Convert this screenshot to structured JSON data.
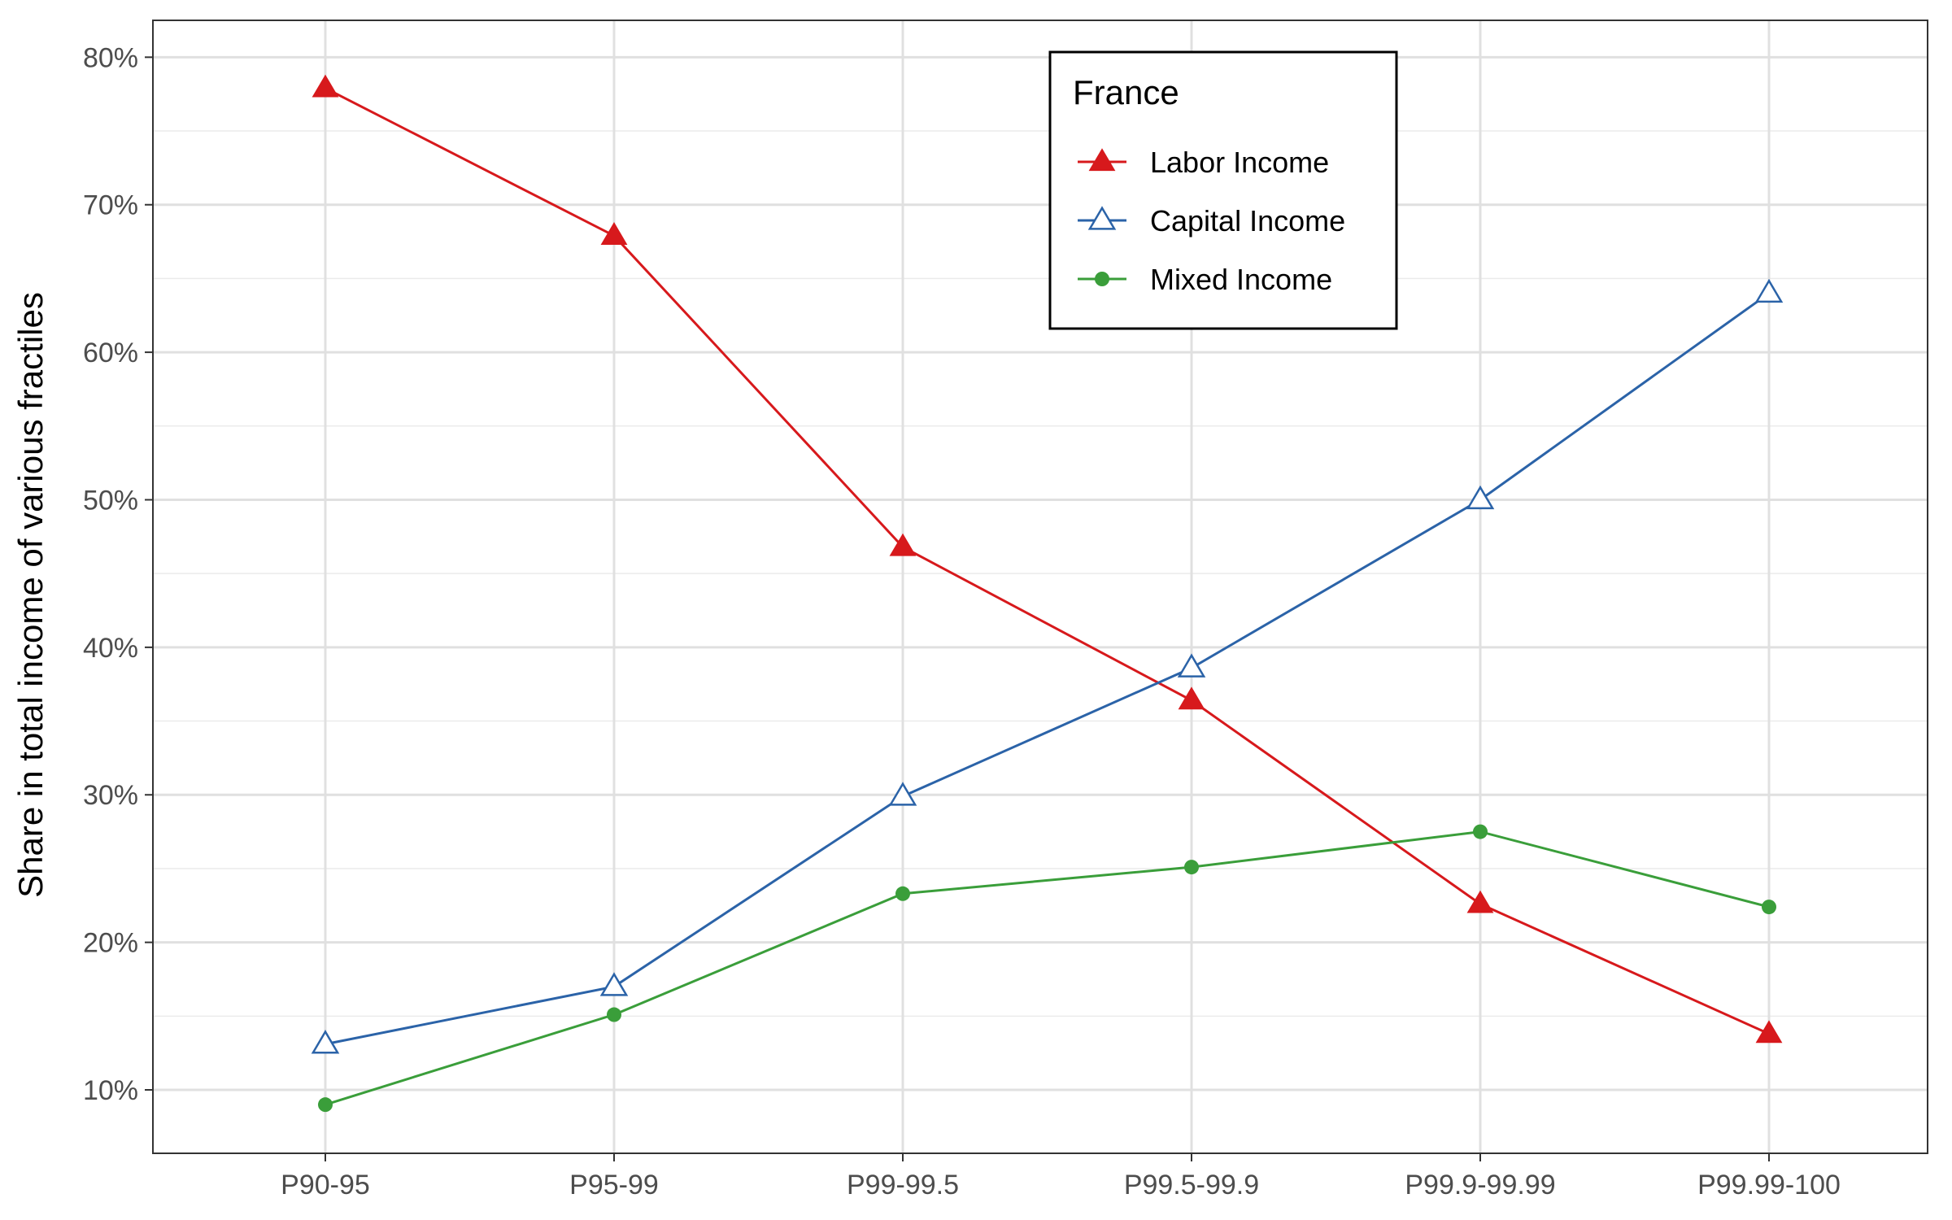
{
  "chart_data": {
    "type": "line",
    "title": "",
    "xlabel": "",
    "ylabel": "Share in total income of various fractiles",
    "categories": [
      "P90-95",
      "P95-99",
      "P99-99.5",
      "P99.5-99.9",
      "P99.9-99.99",
      "P99.99-100"
    ],
    "ylim": [
      5.7,
      82.5
    ],
    "y_ticks": [
      10,
      20,
      30,
      40,
      50,
      60,
      70,
      80
    ],
    "y_tick_labels": [
      "10%",
      "20%",
      "30%",
      "40%",
      "50%",
      "60%",
      "70%",
      "80%"
    ],
    "grid": true,
    "legend": {
      "title": "France",
      "position": "top-center-right"
    },
    "series": [
      {
        "name": "Labor Income",
        "color": "#d7191c",
        "marker": "filled-triangle",
        "values": [
          77.9,
          67.9,
          46.8,
          36.4,
          22.6,
          13.8
        ]
      },
      {
        "name": "Capital Income",
        "color": "#2b63a8",
        "marker": "open-triangle",
        "values": [
          13.1,
          17.0,
          29.9,
          38.6,
          50.0,
          64.0
        ]
      },
      {
        "name": "Mixed Income",
        "color": "#3a9e3a",
        "marker": "filled-circle",
        "values": [
          9.0,
          15.1,
          23.3,
          25.1,
          27.5,
          22.4
        ]
      }
    ]
  }
}
